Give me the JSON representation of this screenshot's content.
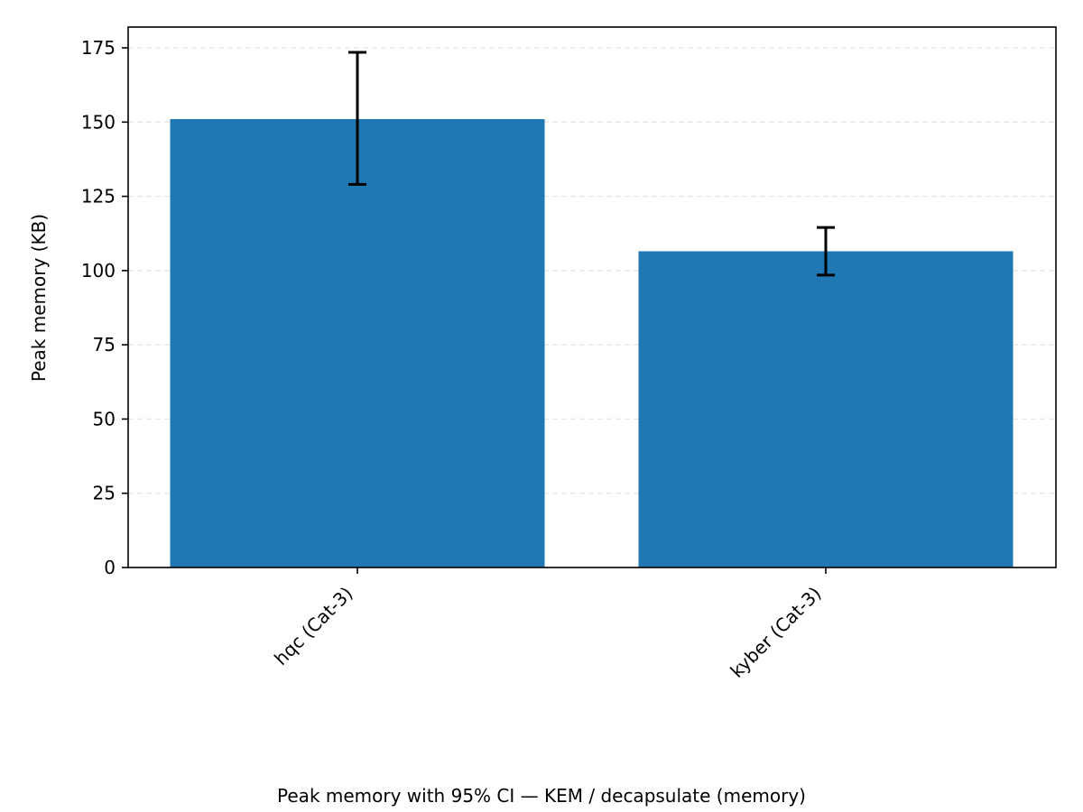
{
  "chart_data": {
    "type": "bar",
    "categories": [
      "hqc (Cat-3)",
      "kyber (Cat-3)"
    ],
    "values": [
      151,
      106.5
    ],
    "errors": [
      {
        "low": 129,
        "high": 173.5
      },
      {
        "low": 98.5,
        "high": 114.5
      }
    ],
    "ylabel": "Peak memory (KB)",
    "xlabel": "",
    "caption": "Peak memory with 95% CI — KEM / decapsulate (memory)",
    "ylim": [
      0,
      182
    ],
    "yticks": [
      0,
      25,
      50,
      75,
      100,
      125,
      150,
      175
    ],
    "grid": "y-dashed",
    "bar_color": "#1f77b4",
    "error_color": "#000000",
    "grid_color": "#e6e6e6"
  }
}
